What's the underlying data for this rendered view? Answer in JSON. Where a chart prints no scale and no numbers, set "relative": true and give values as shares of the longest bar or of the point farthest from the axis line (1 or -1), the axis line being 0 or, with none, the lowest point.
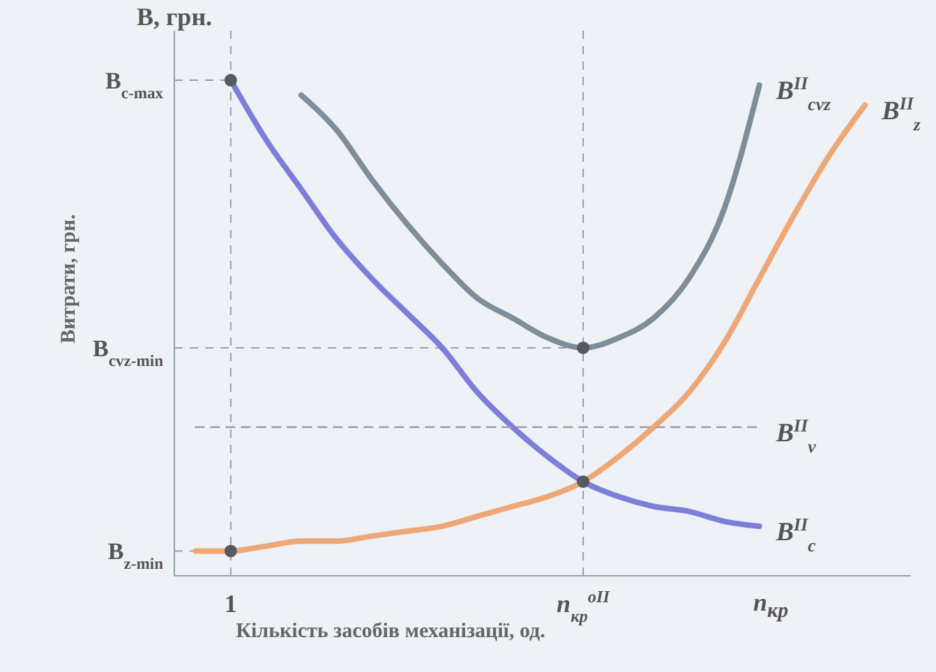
{
  "chart_data": {
    "type": "line",
    "relative": true,
    "xlabel": "Кількість засобів механізації, од.",
    "ylabel": "Витрати, грн.",
    "annotations": [
      "B, грн.",
      "n$_{кр}$"
    ],
    "categories": [
      null,
      "1",
      null,
      null,
      null,
      null,
      null,
      null,
      null,
      null,
      null,
      "n$_{кр}$$^{oII}$",
      null,
      null,
      null,
      null,
      null,
      null,
      null,
      null
    ],
    "marker": "none",
    "series": [
      {
        "name": "B$^{II}$$_{c}$",
        "color": "#7b7fd8",
        "values": [
          null,
          1.0,
          0.88,
          0.78,
          0.68,
          0.6,
          0.53,
          0.46,
          0.37,
          0.3,
          0.24,
          0.19,
          0.16,
          0.14,
          0.13,
          0.11,
          0.1,
          null,
          null,
          null
        ]
      },
      {
        "name": "B$^{II}$$_{z}$",
        "color": "#eea877",
        "values": [
          0.05,
          0.05,
          0.06,
          0.07,
          0.07,
          0.08,
          0.09,
          0.1,
          0.12,
          0.14,
          0.16,
          0.19,
          0.24,
          0.3,
          0.37,
          0.47,
          0.6,
          0.73,
          0.85,
          0.95
        ]
      },
      {
        "name": "B$^{II}$$_{cvz}$",
        "color": "#7d8e99",
        "values": [
          null,
          null,
          null,
          0.97,
          0.9,
          0.8,
          0.71,
          0.63,
          0.56,
          0.52,
          0.48,
          0.46,
          0.48,
          0.52,
          0.6,
          0.74,
          0.99,
          null,
          null,
          null
        ]
      },
      {
        "name": "B$^{II}$$_{v}$",
        "color": "#9a9ea3",
        "line_style": "dashed",
        "values": [
          0.3,
          0.3,
          0.3,
          0.3,
          0.3,
          0.3,
          0.3,
          0.3,
          0.3,
          0.3,
          0.3,
          0.3,
          0.3,
          0.3,
          0.3,
          0.3,
          0.3,
          null,
          null,
          null
        ]
      },
      {
        "type": "scatter",
        "color": "#555a60",
        "marker": "circle",
        "x": [
          "1",
          "1",
          "n$_{кр}$$^{oII}$",
          "n$_{кр}$$^{oII}$"
        ],
        "values": [
          1.0,
          0.05,
          0.46,
          0.19
        ]
      }
    ],
    "ref_lines": [
      {
        "axis": "y",
        "value": 1.0,
        "label": "B$_{c-max}$",
        "line_style": "dashed",
        "color": "#9a9ea3"
      },
      {
        "axis": "y",
        "value": 0.46,
        "label": "B$_{cvz-min}$",
        "line_style": "dashed",
        "color": "#9a9ea3"
      },
      {
        "axis": "y",
        "value": 0.05,
        "label": "B$_{z-min}$",
        "line_style": "dashed",
        "color": "#9a9ea3"
      },
      {
        "axis": "x",
        "value": "1",
        "line_style": "dashed",
        "color": "#9a9ea3"
      },
      {
        "axis": "x",
        "value": "n$_{кр}$$^{oII}$",
        "line_style": "dashed",
        "color": "#9a9ea3"
      }
    ]
  }
}
